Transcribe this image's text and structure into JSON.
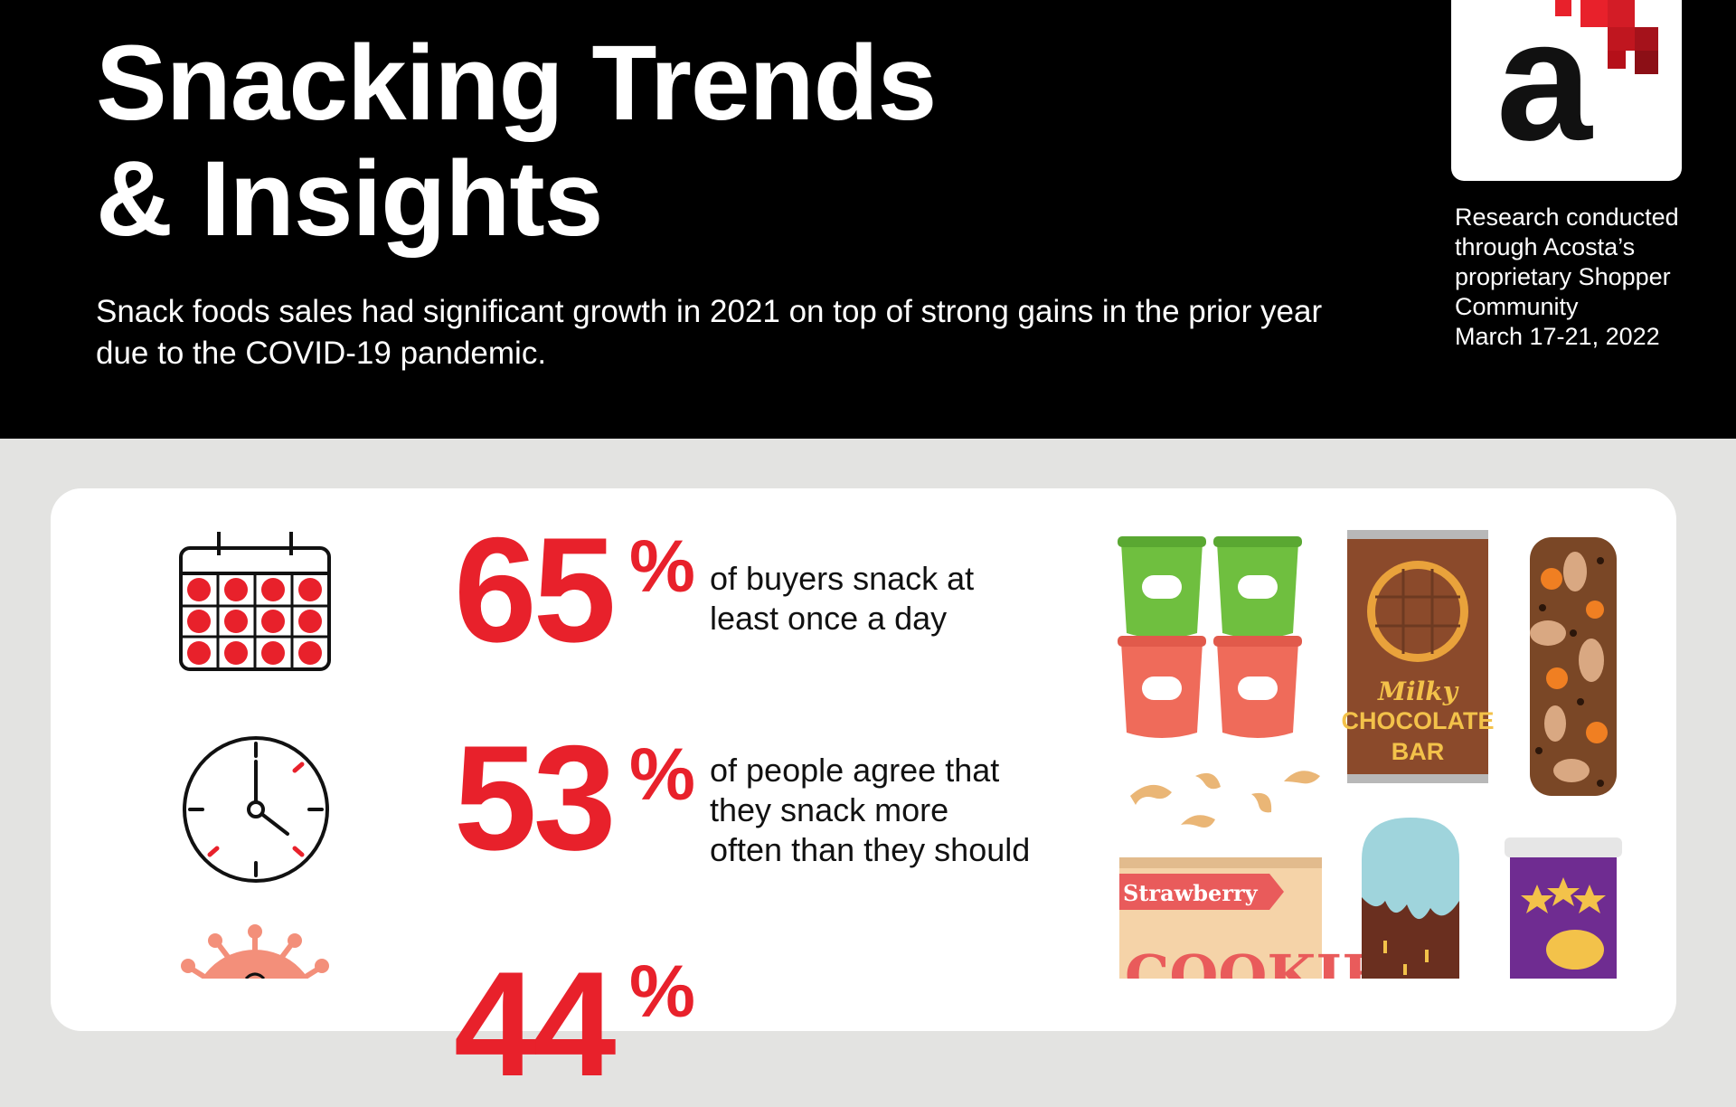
{
  "header": {
    "title_lines": [
      "Snacking Trends",
      "& Insights"
    ],
    "subtitle": "Snack foods sales had significant growth in 2021 on top of strong gains in the prior year due to the COVID-19 pandemic.",
    "logo_letter": "a",
    "research_lines": [
      "Research conducted",
      "through Acosta’s",
      "proprietary Shopper",
      "Community",
      "March 17-21, 2022"
    ]
  },
  "stats": [
    {
      "number": "65",
      "unit": "%",
      "lines": [
        "of buyers snack at",
        "least once a day"
      ],
      "icon": "calendar-icon"
    },
    {
      "number": "53",
      "unit": "%",
      "lines": [
        "of people agree that",
        "they snack more",
        "often than they should"
      ],
      "icon": "clock-icon"
    },
    {
      "number": "44",
      "unit": "%",
      "lines": [],
      "icon": "virus-icon"
    }
  ],
  "illustration": {
    "chocolate_label": [
      "Milky",
      "CHOCOLATE",
      "BAR"
    ],
    "cookie_banner": "Strawberry",
    "cookie_word": "COOKIE"
  },
  "colors": {
    "accent": "#e8212b",
    "header_bg": "#000000",
    "page_bg": "#e3e3e1",
    "card_bg": "#ffffff"
  }
}
